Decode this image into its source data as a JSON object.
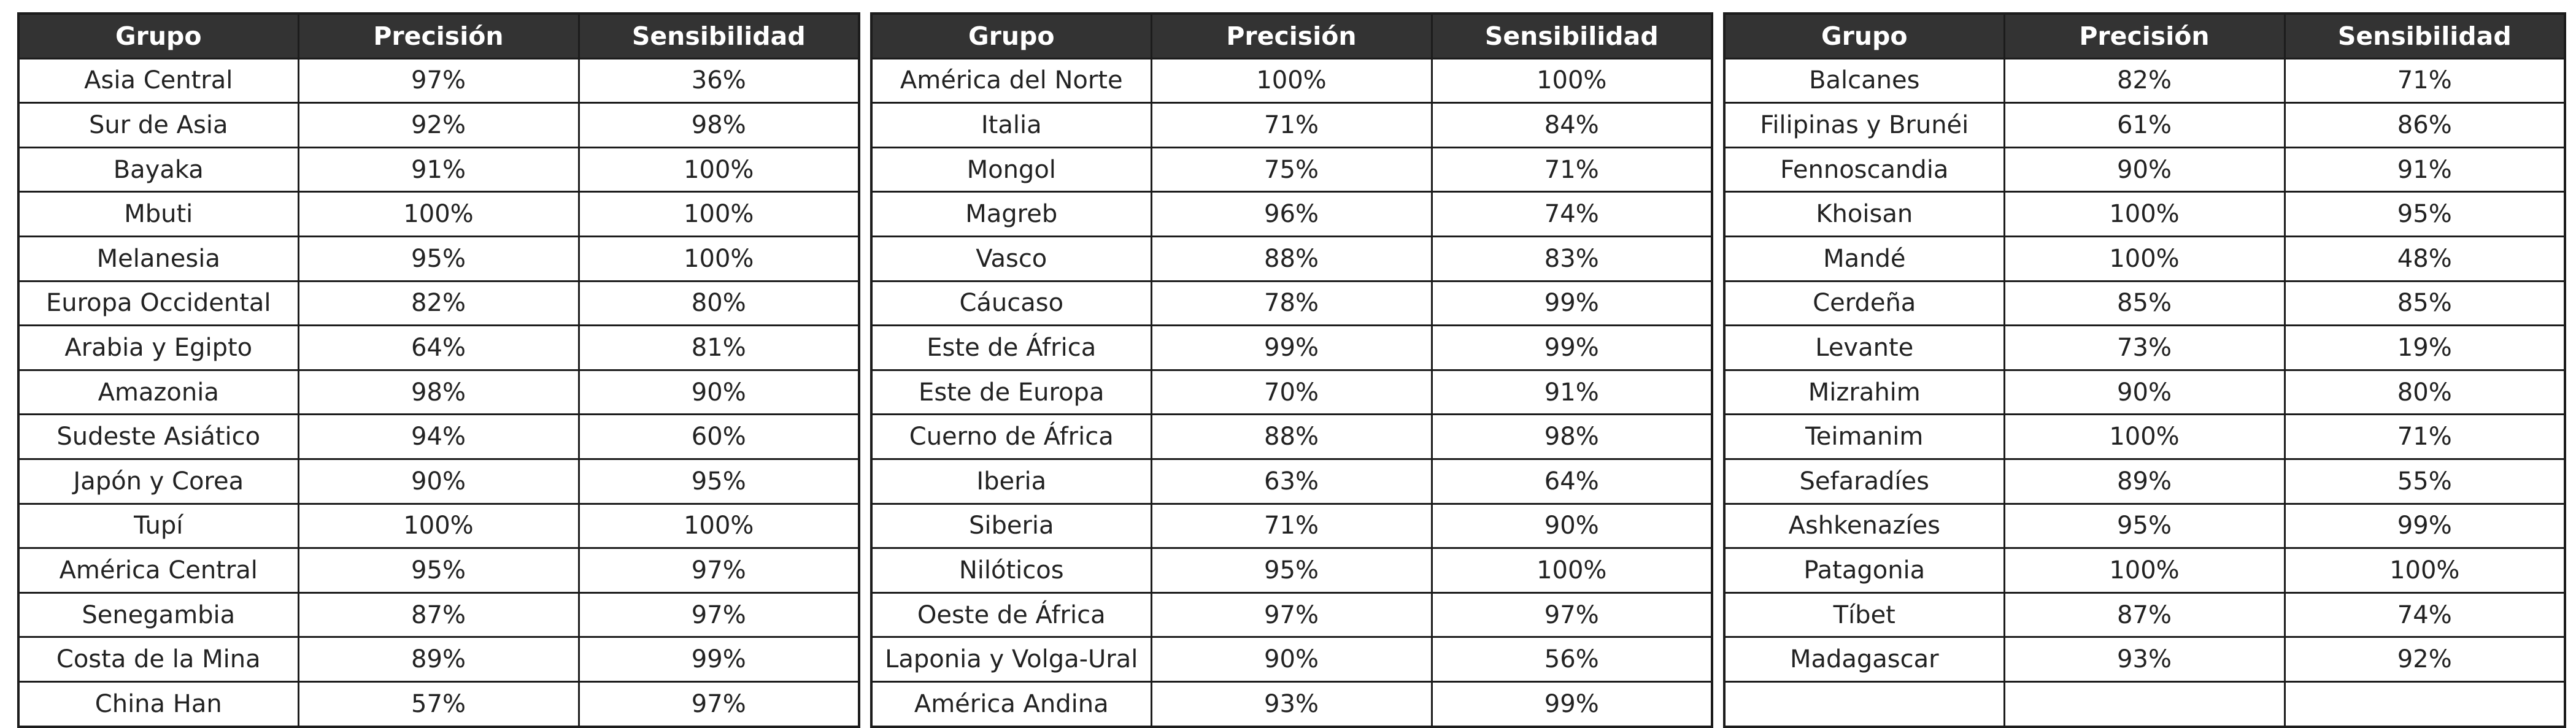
{
  "chart_data": {
    "type": "table",
    "columns": [
      "Grupo",
      "Precisión",
      "Sensibilidad"
    ],
    "tables": [
      {
        "rows": [
          [
            "Asia Central",
            "97%",
            "36%"
          ],
          [
            "Sur de Asia",
            "92%",
            "98%"
          ],
          [
            "Bayaka",
            "91%",
            "100%"
          ],
          [
            "Mbuti",
            "100%",
            "100%"
          ],
          [
            "Melanesia",
            "95%",
            "100%"
          ],
          [
            "Europa Occidental",
            "82%",
            "80%"
          ],
          [
            "Arabia y Egipto",
            "64%",
            "81%"
          ],
          [
            "Amazonia",
            "98%",
            "90%"
          ],
          [
            "Sudeste Asiático",
            "94%",
            "60%"
          ],
          [
            "Japón y Corea",
            "90%",
            "95%"
          ],
          [
            "Tupí",
            "100%",
            "100%"
          ],
          [
            "América Central",
            "95%",
            "97%"
          ],
          [
            "Senegambia",
            "87%",
            "97%"
          ],
          [
            "Costa de la Mina",
            "89%",
            "99%"
          ],
          [
            "China Han",
            "57%",
            "97%"
          ]
        ]
      },
      {
        "rows": [
          [
            "América del Norte",
            "100%",
            "100%"
          ],
          [
            "Italia",
            "71%",
            "84%"
          ],
          [
            "Mongol",
            "75%",
            "71%"
          ],
          [
            "Magreb",
            "96%",
            "74%"
          ],
          [
            "Vasco",
            "88%",
            "83%"
          ],
          [
            "Cáucaso",
            "78%",
            "99%"
          ],
          [
            "Este de África",
            "99%",
            "99%"
          ],
          [
            "Este de Europa",
            "70%",
            "91%"
          ],
          [
            "Cuerno de África",
            "88%",
            "98%"
          ],
          [
            "Iberia",
            "63%",
            "64%"
          ],
          [
            "Siberia",
            "71%",
            "90%"
          ],
          [
            "Nilóticos",
            "95%",
            "100%"
          ],
          [
            "Oeste de África",
            "97%",
            "97%"
          ],
          [
            "Laponia y Volga-Ural",
            "90%",
            "56%"
          ],
          [
            "América Andina",
            "93%",
            "99%"
          ]
        ]
      },
      {
        "rows": [
          [
            "Balcanes",
            "82%",
            "71%"
          ],
          [
            "Filipinas y Brunéi",
            "61%",
            "86%"
          ],
          [
            "Fennoscandia",
            "90%",
            "91%"
          ],
          [
            "Khoisan",
            "100%",
            "95%"
          ],
          [
            "Mandé",
            "100%",
            "48%"
          ],
          [
            "Cerdeña",
            "85%",
            "85%"
          ],
          [
            "Levante",
            "73%",
            "19%"
          ],
          [
            "Mizrahim",
            "90%",
            "80%"
          ],
          [
            "Teimanim",
            "100%",
            "71%"
          ],
          [
            "Sefaradíes",
            "89%",
            "55%"
          ],
          [
            "Ashkenazíes",
            "95%",
            "99%"
          ],
          [
            "Patagonia",
            "100%",
            "100%"
          ],
          [
            "Tíbet",
            "87%",
            "74%"
          ],
          [
            "Madagascar",
            "93%",
            "92%"
          ],
          [
            "",
            "",
            ""
          ]
        ]
      }
    ],
    "colors": {
      "header_bg": "#333333",
      "header_text": "#ffffff",
      "border": "#1c1c1c",
      "cell_bg": "#ffffff",
      "cell_text": "#222222"
    }
  }
}
